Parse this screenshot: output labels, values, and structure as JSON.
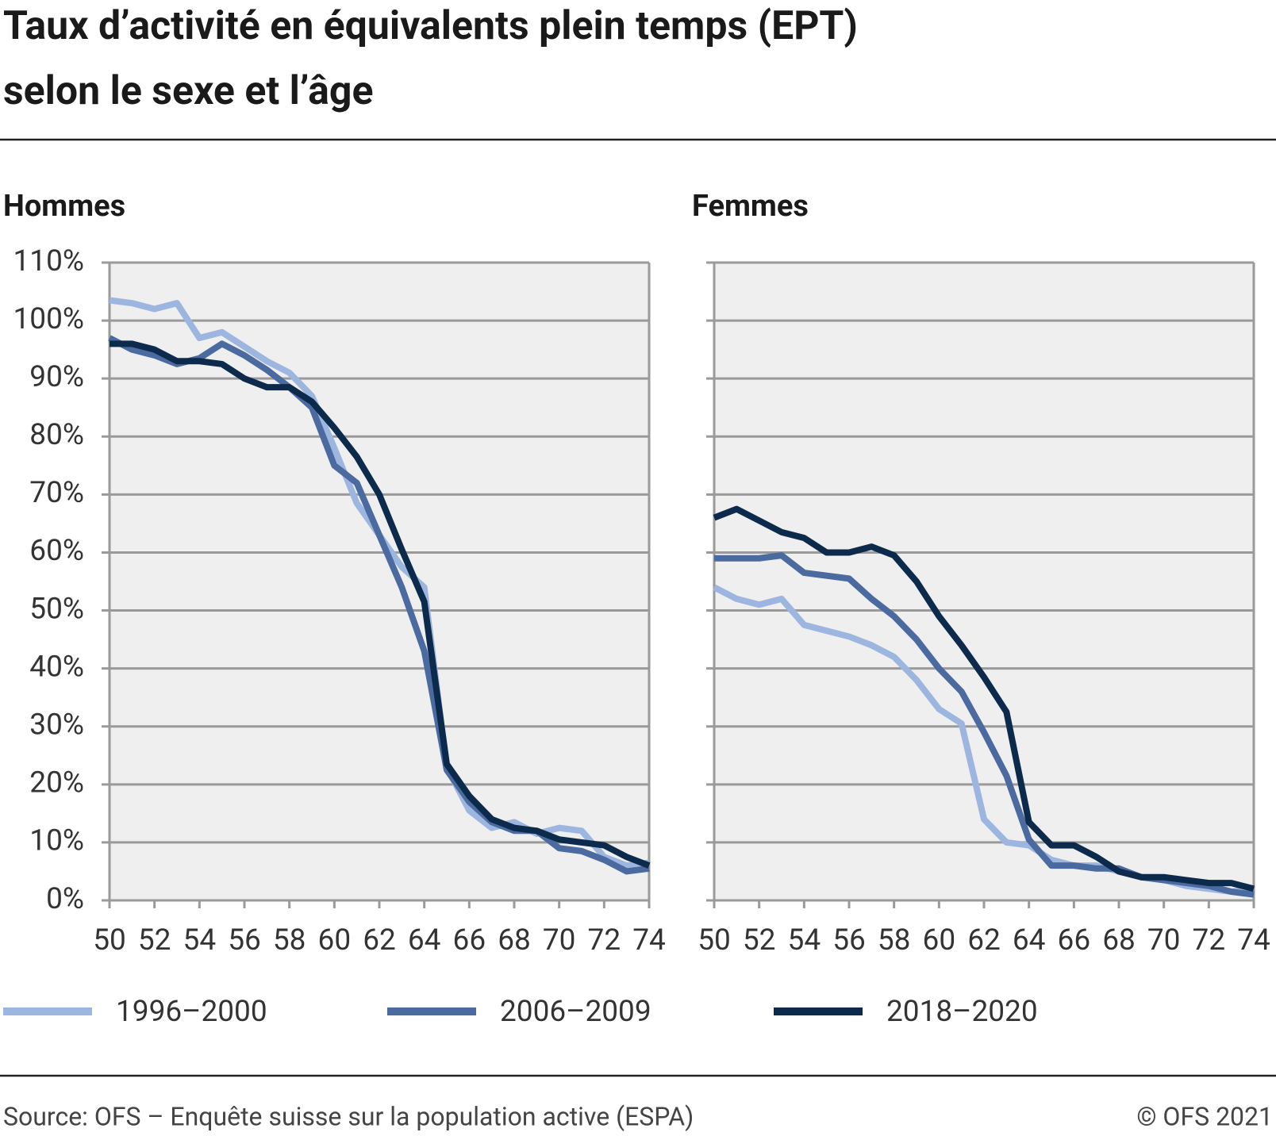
{
  "title": [
    "Taux d’activité en équivalents plein temps (EPT)",
    "selon le sexe et l’âge"
  ],
  "source": "Source: OFS – Enquête suisse sur la population active (ESPA)",
  "copyright": "© OFS 2021",
  "legend_position": "bottom",
  "chart_data": [
    {
      "type": "line",
      "subtitle": "Hommes",
      "x": [
        50,
        51,
        52,
        53,
        54,
        55,
        56,
        57,
        58,
        59,
        60,
        61,
        62,
        63,
        64,
        65,
        66,
        67,
        68,
        69,
        70,
        71,
        72,
        73,
        74
      ],
      "xlim": [
        50,
        74
      ],
      "xticks": [
        50,
        52,
        54,
        56,
        58,
        60,
        62,
        64,
        66,
        68,
        70,
        72,
        74
      ],
      "ylim": [
        0,
        110
      ],
      "yticks": [
        {
          "value": 0,
          "label": "0%"
        },
        {
          "value": 10,
          "label": "10%"
        },
        {
          "value": 20,
          "label": "20%"
        },
        {
          "value": 30,
          "label": "30%"
        },
        {
          "value": 40,
          "label": "40%"
        },
        {
          "value": 50,
          "label": "50%"
        },
        {
          "value": 60,
          "label": "60%"
        },
        {
          "value": 70,
          "label": "70%"
        },
        {
          "value": 80,
          "label": "80%"
        },
        {
          "value": 90,
          "label": "90%"
        },
        {
          "value": 100,
          "label": "100%"
        },
        {
          "value": 110,
          "label": "110%"
        }
      ],
      "grid": true,
      "series": [
        {
          "name": "1996–2000",
          "color": "#9db6df",
          "values": [
            103.5,
            103,
            102,
            103,
            97,
            98,
            95.5,
            93,
            91,
            87,
            78,
            68.5,
            63,
            57.5,
            54,
            23,
            15.5,
            12.5,
            13.5,
            11.5,
            12.5,
            12,
            7.5,
            6,
            6.5
          ]
        },
        {
          "name": "2006–2009",
          "color": "#4a6aa0",
          "values": [
            97,
            95,
            94,
            92.5,
            93.5,
            96,
            94,
            91.5,
            88.5,
            85,
            75,
            72,
            63,
            54,
            43,
            22.5,
            17,
            13.5,
            12,
            12,
            9,
            8.5,
            7,
            5,
            5.5
          ]
        },
        {
          "name": "2018–2020",
          "color": "#0c2a4c",
          "values": [
            96,
            96,
            95,
            93,
            93,
            92.5,
            90,
            88.5,
            88.5,
            86,
            81.5,
            76.5,
            70,
            60.5,
            51.5,
            23.5,
            18,
            14,
            12.5,
            12,
            10.5,
            10,
            9.5,
            7.5,
            6
          ]
        }
      ]
    },
    {
      "type": "line",
      "subtitle": "Femmes",
      "x": [
        50,
        51,
        52,
        53,
        54,
        55,
        56,
        57,
        58,
        59,
        60,
        61,
        62,
        63,
        64,
        65,
        66,
        67,
        68,
        69,
        70,
        71,
        72,
        73,
        74
      ],
      "xlim": [
        50,
        74
      ],
      "xticks": [
        50,
        52,
        54,
        56,
        58,
        60,
        62,
        64,
        66,
        68,
        70,
        72,
        74
      ],
      "ylim": [
        0,
        110
      ],
      "yticks": [
        {
          "value": 0,
          "label": "0%"
        },
        {
          "value": 10,
          "label": "10%"
        },
        {
          "value": 20,
          "label": "20%"
        },
        {
          "value": 30,
          "label": "30%"
        },
        {
          "value": 40,
          "label": "40%"
        },
        {
          "value": 50,
          "label": "50%"
        },
        {
          "value": 60,
          "label": "60%"
        },
        {
          "value": 70,
          "label": "70%"
        },
        {
          "value": 80,
          "label": "80%"
        },
        {
          "value": 90,
          "label": "90%"
        },
        {
          "value": 100,
          "label": "100%"
        },
        {
          "value": 110,
          "label": "110%"
        }
      ],
      "grid": true,
      "series": [
        {
          "name": "1996–2000",
          "color": "#9db6df",
          "values": [
            54,
            52,
            51,
            52,
            47.5,
            46.5,
            45.5,
            44,
            42,
            38,
            33,
            30.5,
            14,
            10,
            9.5,
            7,
            6,
            6,
            5,
            4,
            3.5,
            2.5,
            2,
            1.5,
            2
          ]
        },
        {
          "name": "2006–2009",
          "color": "#4a6aa0",
          "values": [
            59,
            59,
            59,
            59.5,
            56.5,
            56,
            55.5,
            52,
            49,
            45,
            40,
            36,
            29,
            21.5,
            10.5,
            6,
            6,
            5.5,
            5.5,
            4,
            3.5,
            3,
            2.5,
            1.5,
            1
          ]
        },
        {
          "name": "2018–2020",
          "color": "#0c2a4c",
          "values": [
            66,
            67.5,
            65.5,
            63.5,
            62.5,
            60,
            60,
            61,
            59.5,
            55,
            49,
            44,
            38.5,
            32.5,
            13.5,
            9.5,
            9.5,
            7.5,
            5,
            4,
            4,
            3.5,
            3,
            3,
            2
          ]
        }
      ]
    }
  ]
}
